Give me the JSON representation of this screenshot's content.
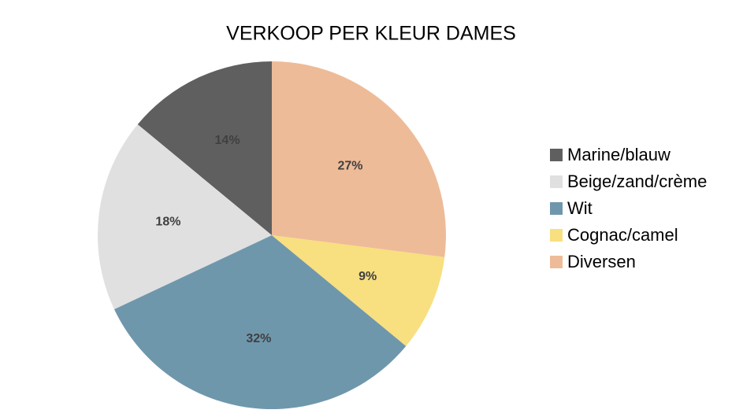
{
  "chart_data": {
    "type": "pie",
    "title": "VERKOOP PER KLEUR DAMES",
    "categories": [
      "Marine/blauw",
      "Beige/zand/crème",
      "Wit",
      "Cognac/camel",
      "Diversen"
    ],
    "values": [
      14,
      18,
      32,
      9,
      27
    ],
    "value_labels": [
      "14%",
      "18%",
      "32%",
      "9%",
      "27%"
    ],
    "colors": [
      "#5f5f5f",
      "#e0e0e0",
      "#6f97ac",
      "#f8df80",
      "#eebb98"
    ],
    "legend": "right"
  }
}
